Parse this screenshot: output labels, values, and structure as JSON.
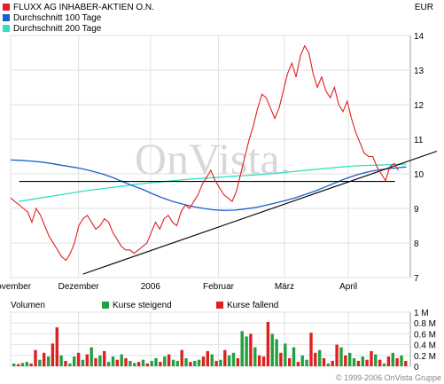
{
  "legend": [
    {
      "label": "FLUXX AG INHABER-AKTIEN O.N.",
      "color": "#e02020"
    },
    {
      "label": "Durchschnitt 100 Tage",
      "color": "#1a5fd0"
    },
    {
      "label": "Durchschnitt 200 Tage",
      "color": "#30e0c0"
    }
  ],
  "currency": "EUR",
  "watermark": "OnVista.",
  "copyright": "© 1999-2006 OnVista Gruppe",
  "volume_legend": {
    "title": "Volumen",
    "up": "Kurse steigend",
    "down": "Kurse fallend"
  },
  "colors": {
    "price": "#e02020",
    "ma100": "#1a5fd0",
    "ma200": "#30e0c0",
    "up": "#20a040",
    "down": "#e02020"
  },
  "chart_data": [
    {
      "type": "line",
      "x_tick_labels": [
        "November",
        "Dezember",
        "2006",
        "Februar",
        "März",
        "April"
      ],
      "ylim": [
        7,
        14
      ],
      "y_ticks": [
        7,
        8,
        9,
        10,
        11,
        12,
        13,
        14
      ],
      "grid": true,
      "series": [
        {
          "name": "FLUXX AG INHABER-AKTIEN O.N.",
          "values": [
            9.3,
            9.2,
            9.1,
            9.0,
            8.9,
            8.6,
            9.0,
            8.8,
            8.5,
            8.2,
            8.0,
            7.8,
            7.6,
            7.5,
            7.7,
            8.0,
            8.5,
            8.7,
            8.8,
            8.6,
            8.4,
            8.5,
            8.7,
            8.6,
            8.3,
            8.1,
            7.9,
            7.8,
            7.8,
            7.7,
            7.8,
            7.9,
            8.0,
            8.3,
            8.6,
            8.4,
            8.7,
            8.8,
            8.6,
            8.5,
            8.9,
            9.1,
            9.0,
            9.2,
            9.4,
            9.7,
            9.9,
            10.1,
            9.8,
            9.6,
            9.4,
            9.3,
            9.2,
            9.5,
            10.0,
            10.5,
            11.0,
            11.4,
            11.9,
            12.3,
            12.2,
            11.9,
            11.6,
            11.9,
            12.4,
            12.9,
            13.2,
            12.8,
            13.4,
            13.7,
            13.5,
            12.9,
            12.5,
            12.8,
            12.4,
            12.2,
            12.5,
            12.0,
            11.8,
            12.1,
            11.6,
            11.2,
            10.9,
            10.6,
            10.5,
            10.5,
            10.2,
            10.0,
            9.8,
            10.2,
            10.3,
            10.1
          ]
        },
        {
          "name": "Durchschnitt 100 Tage",
          "values": [
            10.4,
            10.39,
            10.37,
            10.34,
            10.3,
            10.25,
            10.2,
            10.15,
            10.08,
            10.0,
            9.9,
            9.78,
            9.66,
            9.55,
            9.42,
            9.3,
            9.2,
            9.12,
            9.05,
            9.0,
            8.96,
            8.94,
            8.95,
            8.98,
            9.02,
            9.08,
            9.15,
            9.22,
            9.3,
            9.4,
            9.5,
            9.62,
            9.74,
            9.86,
            9.96,
            10.04,
            10.1,
            10.14,
            10.17,
            10.2
          ]
        },
        {
          "name": "Durchschnitt 200 Tage",
          "values": [
            9.2,
            9.25,
            9.3,
            9.35,
            9.4,
            9.45,
            9.5,
            9.54,
            9.58,
            9.62,
            9.66,
            9.7,
            9.73,
            9.76,
            9.79,
            9.82,
            9.85,
            9.87,
            9.89,
            9.91,
            9.93,
            9.95,
            9.97,
            9.99,
            10.02,
            10.05,
            10.08,
            10.11,
            10.14,
            10.17,
            10.2,
            10.22,
            10.24,
            10.25,
            10.26,
            10.27,
            10.28
          ]
        }
      ],
      "trendlines": [
        {
          "x": [
            0.1808,
            1.0
          ],
          "y": [
            7.1,
            10.5
          ]
        },
        {
          "x": [
            0.0216,
            0.9616
          ],
          "y": [
            9.78,
            9.78
          ]
        }
      ]
    },
    {
      "type": "bar",
      "ylim": [
        0,
        1
      ],
      "y_tick_labels": [
        "1 M",
        "0.8 M",
        "0.6 M",
        "0.4 M",
        "0.2 M",
        "0"
      ],
      "grid": true,
      "values": [
        0.05,
        0.04,
        0.06,
        0.08,
        0.05,
        0.3,
        0.12,
        0.25,
        0.18,
        0.42,
        0.72,
        0.2,
        0.1,
        0.05,
        0.18,
        0.25,
        0.12,
        0.22,
        0.35,
        0.15,
        0.2,
        0.28,
        0.08,
        0.18,
        0.12,
        0.22,
        0.15,
        0.1,
        0.06,
        0.08,
        0.12,
        0.05,
        0.1,
        0.15,
        0.08,
        0.18,
        0.22,
        0.12,
        0.1,
        0.3,
        0.15,
        0.08,
        0.1,
        0.12,
        0.18,
        0.28,
        0.22,
        0.1,
        0.12,
        0.3,
        0.2,
        0.25,
        0.15,
        0.65,
        0.55,
        0.6,
        0.35,
        0.2,
        0.18,
        0.82,
        0.6,
        0.5,
        0.25,
        0.42,
        0.15,
        0.35,
        0.08,
        0.2,
        0.12,
        0.62,
        0.25,
        0.3,
        0.15,
        0.05,
        0.1,
        0.4,
        0.35,
        0.2,
        0.25,
        0.15,
        0.1,
        0.18,
        0.12,
        0.28,
        0.22,
        0.12,
        0.05,
        0.18,
        0.25,
        0.15,
        0.2,
        0.1
      ],
      "rising": [
        1,
        0,
        1,
        1,
        0,
        0,
        1,
        0,
        1,
        0,
        0,
        1,
        0,
        1,
        1,
        0,
        1,
        0,
        1,
        0,
        1,
        0,
        1,
        1,
        0,
        1,
        0,
        1,
        1,
        0,
        1,
        0,
        1,
        1,
        0,
        1,
        0,
        1,
        1,
        0,
        1,
        0,
        1,
        1,
        0,
        0,
        1,
        0,
        1,
        0,
        1,
        1,
        0,
        1,
        1,
        0,
        1,
        0,
        0,
        0,
        1,
        1,
        0,
        1,
        0,
        1,
        0,
        1,
        1,
        0,
        0,
        1,
        0,
        1,
        0,
        0,
        1,
        0,
        1,
        1,
        0,
        1,
        0,
        0,
        1,
        0,
        1,
        0,
        1,
        0,
        1,
        0
      ]
    }
  ]
}
